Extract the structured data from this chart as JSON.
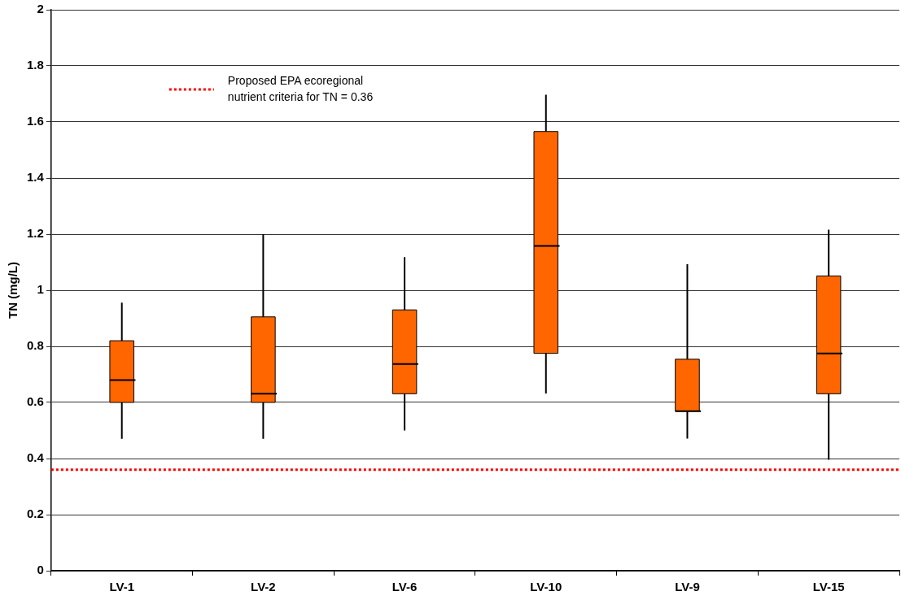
{
  "chart_data": {
    "type": "box",
    "ylabel": "TN (mg/L)",
    "categories": [
      "LV-1",
      "LV-2",
      "LV-6",
      "LV-10",
      "LV-9",
      "LV-15"
    ],
    "color": "#ff6600",
    "boxes": [
      {
        "low": 0.47,
        "q1": 0.6,
        "median": 0.68,
        "q3": 0.82,
        "high": 0.956
      },
      {
        "low": 0.47,
        "q1": 0.6,
        "median": 0.631,
        "q3": 0.905,
        "high": 1.2
      },
      {
        "low": 0.5,
        "q1": 0.631,
        "median": 0.737,
        "q3": 0.93,
        "high": 1.118
      },
      {
        "low": 0.632,
        "q1": 0.775,
        "median": 1.158,
        "q3": 1.566,
        "high": 1.697
      },
      {
        "low": 0.471,
        "q1": 0.569,
        "median": 0.569,
        "q3": 0.754,
        "high": 1.093
      },
      {
        "low": 0.396,
        "q1": 0.631,
        "median": 0.775,
        "q3": 1.051,
        "high": 1.216
      }
    ],
    "ylim": [
      0,
      2
    ],
    "yticks": [
      0,
      0.2,
      0.4,
      0.6,
      0.8,
      1,
      1.2,
      1.4,
      1.6,
      1.8,
      2
    ],
    "grid": "y",
    "ref_lines": [
      {
        "axis": "y",
        "value": 0.36,
        "label": "Proposed EPA ecoregional\nnutrient criteria for TN = 0.36",
        "color": "#ff0000",
        "line_style": "dotted"
      }
    ]
  }
}
